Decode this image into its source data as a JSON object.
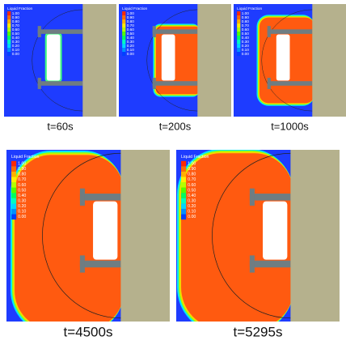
{
  "legend": {
    "title": "Liquid Fraction",
    "labels": [
      "1.00",
      "0.90",
      "0.80",
      "0.70",
      "0.60",
      "0.50",
      "0.40",
      "0.30",
      "0.20",
      "0.10",
      "0.00"
    ],
    "colors": [
      "#ff2a00",
      "#ff6a00",
      "#ffb000",
      "#ffee00",
      "#b4ff00",
      "#50ff00",
      "#00ff60",
      "#00ffc0",
      "#00d8ff",
      "#0090ff",
      "#0040ff"
    ]
  },
  "panels": [
    {
      "caption": "t=60s"
    },
    {
      "caption": "t=200s"
    },
    {
      "caption": "t=1000s"
    },
    {
      "caption": "t=4500s"
    },
    {
      "caption": "t=5295s"
    }
  ]
}
